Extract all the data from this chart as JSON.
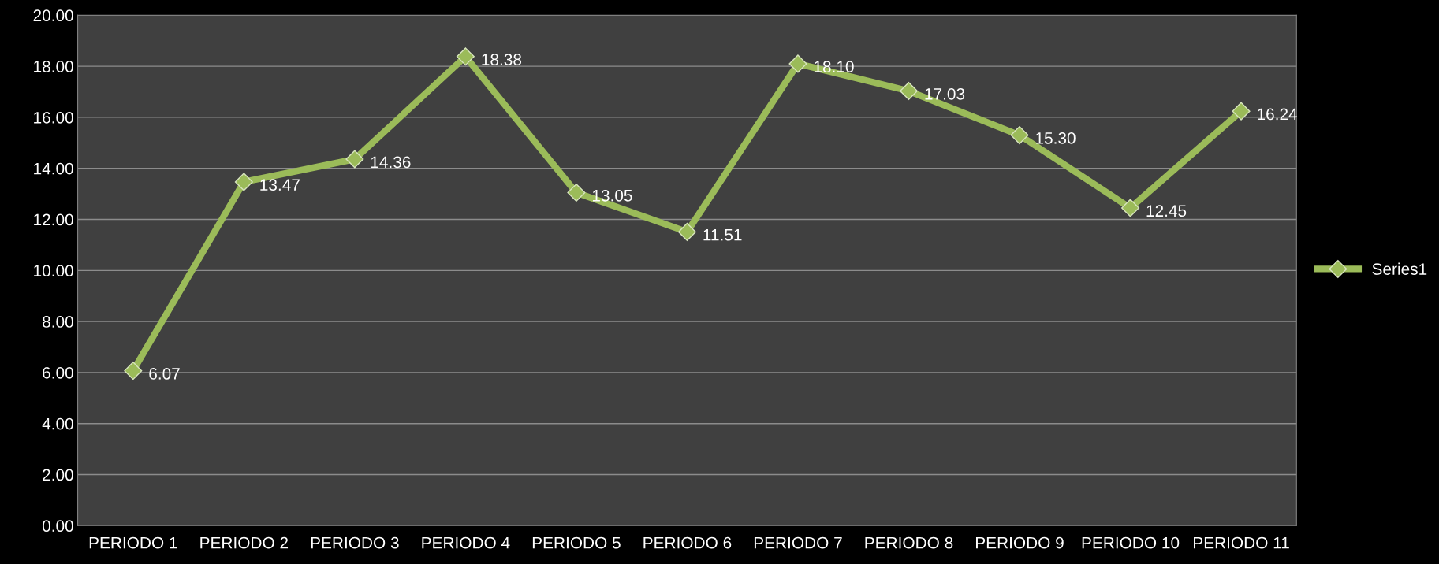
{
  "chart_data": {
    "type": "line",
    "categories": [
      "PERIODO 1",
      "PERIODO 2",
      "PERIODO 3",
      "PERIODO 4",
      "PERIODO 5",
      "PERIODO 6",
      "PERIODO 7",
      "PERIODO 8",
      "PERIODO 9",
      "PERIODO 10",
      "PERIODO 11"
    ],
    "series": [
      {
        "name": "Series1",
        "color": "#9bbb59",
        "values": [
          6.07,
          13.47,
          14.36,
          18.38,
          13.05,
          11.51,
          18.1,
          17.03,
          15.3,
          12.45,
          16.24
        ],
        "value_labels": [
          "6.07",
          "13.47",
          "14.36",
          "18.38",
          "13.05",
          "11.51",
          "18.10",
          "17.03",
          "15.30",
          "12.45",
          "16.24"
        ]
      }
    ],
    "ylim": [
      0,
      20
    ],
    "yticks": [
      {
        "value": 0,
        "label": "0.00"
      },
      {
        "value": 2,
        "label": "2.00"
      },
      {
        "value": 4,
        "label": "4.00"
      },
      {
        "value": 6,
        "label": "6.00"
      },
      {
        "value": 8,
        "label": "8.00"
      },
      {
        "value": 10,
        "label": "10.00"
      },
      {
        "value": 12,
        "label": "12.00"
      },
      {
        "value": 14,
        "label": "14.00"
      },
      {
        "value": 16,
        "label": "16.00"
      },
      {
        "value": 18,
        "label": "18.00"
      },
      {
        "value": 20,
        "label": "20.00"
      }
    ],
    "grid": "y",
    "legend": "right",
    "marker": "diamond",
    "line_style": "solid"
  }
}
